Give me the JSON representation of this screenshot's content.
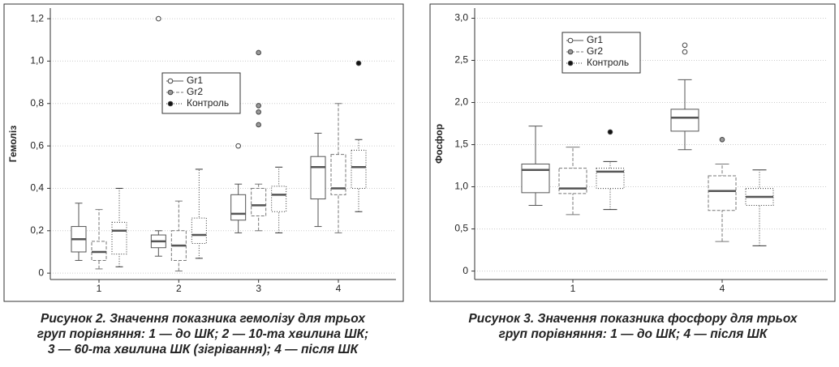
{
  "chart_data": [
    {
      "type": "box",
      "ylabel": "Гемоліз",
      "caption": [
        "Рисунок 2. Значення показника гемолізу для трьох",
        "груп порівняння: 1 — до ШК; 2 — 10-та хвилина ШК;",
        "3 — 60-та хвилина ШК (зігрівання); 4 — після ШК"
      ],
      "categories": [
        "1",
        "2",
        "3",
        "4"
      ],
      "ylim": [
        -0.03,
        1.25
      ],
      "yticks": [
        0,
        {
          "value": 0.2,
          "label": "0,2"
        },
        {
          "value": 0.4,
          "label": "0,4"
        },
        {
          "value": 0.6,
          "label": "0,6"
        },
        {
          "value": 0.8,
          "label": "0,8"
        },
        {
          "value": 1.0,
          "label": "1,0"
        },
        {
          "value": 1.2,
          "label": "1,2"
        }
      ],
      "grid": true,
      "series": [
        {
          "name": "Gr1",
          "color": "#ffffff",
          "boxes": [
            {
              "min": 0.06,
              "q1": 0.1,
              "median": 0.16,
              "q3": 0.22,
              "max": 0.33,
              "outliers": []
            },
            {
              "min": 0.08,
              "q1": 0.12,
              "median": 0.15,
              "q3": 0.18,
              "max": 0.2,
              "outliers": [
                1.2
              ]
            },
            {
              "min": 0.19,
              "q1": 0.25,
              "median": 0.28,
              "q3": 0.37,
              "max": 0.42,
              "outliers": [
                0.6
              ]
            },
            {
              "min": 0.22,
              "q1": 0.35,
              "median": 0.5,
              "q3": 0.55,
              "max": 0.66,
              "outliers": []
            }
          ]
        },
        {
          "name": "Gr2",
          "color": "#999999",
          "boxes": [
            {
              "min": 0.02,
              "q1": 0.06,
              "median": 0.1,
              "q3": 0.15,
              "max": 0.3,
              "outliers": []
            },
            {
              "min": 0.01,
              "q1": 0.06,
              "median": 0.13,
              "q3": 0.2,
              "max": 0.34,
              "outliers": []
            },
            {
              "min": 0.2,
              "q1": 0.27,
              "median": 0.32,
              "q3": 0.4,
              "max": 0.42,
              "outliers": [
                0.7,
                0.76,
                0.79,
                1.04
              ]
            },
            {
              "min": 0.19,
              "q1": 0.37,
              "median": 0.4,
              "q3": 0.56,
              "max": 0.8,
              "outliers": []
            }
          ]
        },
        {
          "name": "Контроль",
          "color": "#111111",
          "boxes": [
            {
              "min": 0.03,
              "q1": 0.09,
              "median": 0.2,
              "q3": 0.24,
              "max": 0.4,
              "outliers": []
            },
            {
              "min": 0.07,
              "q1": 0.14,
              "median": 0.18,
              "q3": 0.26,
              "max": 0.49,
              "outliers": []
            },
            {
              "min": 0.19,
              "q1": 0.29,
              "median": 0.37,
              "q3": 0.41,
              "max": 0.5,
              "outliers": []
            },
            {
              "min": 0.29,
              "q1": 0.4,
              "median": 0.5,
              "q3": 0.58,
              "max": 0.63,
              "outliers": [
                0.99
              ]
            }
          ]
        }
      ]
    },
    {
      "type": "box",
      "ylabel": "Фосфор",
      "caption": [
        "Рисунок 3. Значення показника фосфору для трьох",
        "груп порівняння: 1 — до ШК; 4 — після ШК"
      ],
      "categories": [
        "1",
        "4"
      ],
      "ylim": [
        -0.1,
        3.12
      ],
      "yticks": [
        0,
        {
          "value": 0.5,
          "label": "0,5"
        },
        {
          "value": 1.0,
          "label": "1,0"
        },
        {
          "value": 1.5,
          "label": "1,5"
        },
        {
          "value": 2.0,
          "label": "2,0"
        },
        {
          "value": 2.5,
          "label": "2,5"
        },
        {
          "value": 3.0,
          "label": "3,0"
        }
      ],
      "grid": true,
      "series": [
        {
          "name": "Gr1",
          "color": "#ffffff",
          "boxes": [
            {
              "min": 0.78,
              "q1": 0.93,
              "median": 1.2,
              "q3": 1.27,
              "max": 1.72,
              "outliers": []
            },
            {
              "min": 1.44,
              "q1": 1.66,
              "median": 1.82,
              "q3": 1.92,
              "max": 2.27,
              "outliers": [
                2.6,
                2.68
              ]
            }
          ]
        },
        {
          "name": "Gr2",
          "color": "#999999",
          "boxes": [
            {
              "min": 0.67,
              "q1": 0.92,
              "median": 0.98,
              "q3": 1.22,
              "max": 1.47,
              "outliers": []
            },
            {
              "min": 0.35,
              "q1": 0.72,
              "median": 0.95,
              "q3": 1.13,
              "max": 1.27,
              "outliers": [
                1.56
              ]
            }
          ]
        },
        {
          "name": "Контроль",
          "color": "#111111",
          "boxes": [
            {
              "min": 0.73,
              "q1": 0.98,
              "median": 1.18,
              "q3": 1.22,
              "max": 1.3,
              "outliers": [
                1.65
              ]
            },
            {
              "min": 0.3,
              "q1": 0.78,
              "median": 0.88,
              "q3": 0.98,
              "max": 1.2,
              "outliers": []
            }
          ]
        }
      ]
    }
  ]
}
